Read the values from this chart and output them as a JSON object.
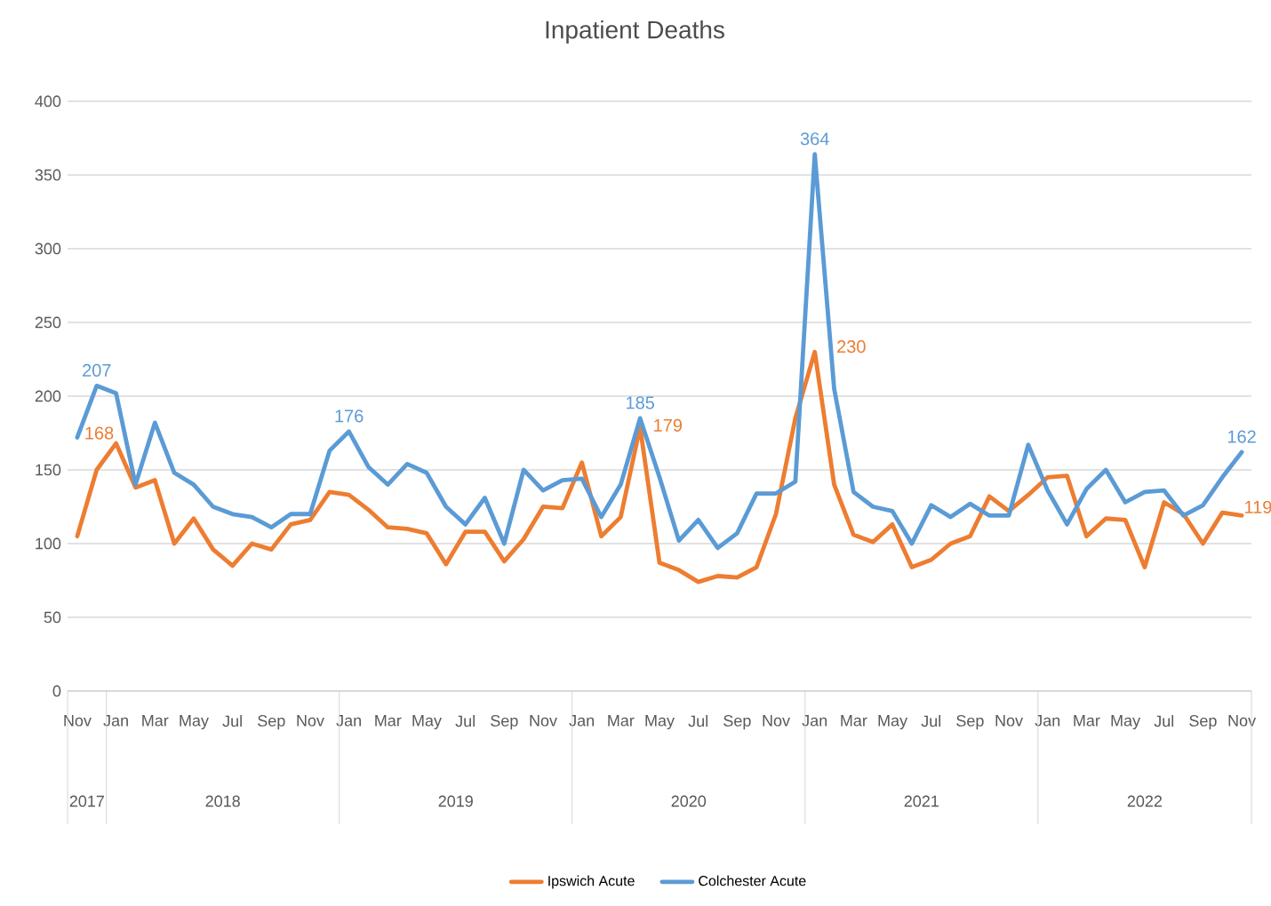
{
  "chart_data": {
    "type": "line",
    "title": "Inpatient Deaths",
    "categories": [
      "Nov",
      null,
      "Jan",
      null,
      "Mar",
      null,
      "May",
      null,
      "Jul",
      null,
      "Sep",
      null,
      "Nov",
      null,
      "Jan",
      null,
      "Mar",
      null,
      "May",
      null,
      "Jul",
      null,
      "Sep",
      null,
      "Nov",
      null,
      "Jan",
      null,
      "Mar",
      null,
      "May",
      null,
      "Jul",
      null,
      "Sep",
      null,
      "Nov",
      null,
      "Jan",
      null,
      "Mar",
      null,
      "May",
      null,
      "Jul",
      null,
      "Sep",
      null,
      "Nov",
      null,
      "Jan",
      null,
      "Mar",
      null,
      "May",
      null,
      "Jul",
      null,
      "Sep",
      null,
      "Nov"
    ],
    "series": [
      {
        "name": "Ipswich Acute",
        "color": "#ed7d31",
        "values": [
          105,
          150,
          168,
          138,
          143,
          100,
          117,
          96,
          85,
          100,
          96,
          113,
          116,
          135,
          133,
          123,
          111,
          110,
          107,
          86,
          108,
          108,
          88,
          103,
          125,
          124,
          155,
          105,
          118,
          179,
          87,
          82,
          74,
          78,
          77,
          84,
          120,
          185,
          230,
          140,
          106,
          101,
          113,
          84,
          89,
          100,
          105,
          132,
          122,
          133,
          145,
          146,
          105,
          117,
          116,
          84,
          128,
          120,
          100,
          121,
          119
        ],
        "value_labels": [
          null,
          null,
          "168",
          null,
          null,
          null,
          null,
          null,
          null,
          null,
          null,
          null,
          null,
          null,
          null,
          null,
          null,
          null,
          null,
          null,
          null,
          null,
          null,
          null,
          null,
          null,
          null,
          null,
          null,
          "179",
          null,
          null,
          null,
          null,
          null,
          null,
          null,
          null,
          "230",
          null,
          null,
          null,
          null,
          null,
          null,
          null,
          null,
          null,
          null,
          null,
          null,
          null,
          null,
          null,
          null,
          null,
          null,
          null,
          null,
          null,
          "119"
        ]
      },
      {
        "name": "Colchester Acute",
        "color": "#5b9bd5",
        "values": [
          172,
          207,
          202,
          140,
          182,
          148,
          140,
          125,
          120,
          118,
          111,
          120,
          120,
          163,
          176,
          152,
          140,
          154,
          148,
          125,
          113,
          131,
          100,
          150,
          136,
          143,
          144,
          118,
          140,
          185,
          145,
          102,
          116,
          97,
          107,
          134,
          134,
          142,
          364,
          205,
          135,
          125,
          122,
          100,
          126,
          118,
          127,
          119,
          119,
          167,
          136,
          113,
          137,
          150,
          128,
          135,
          136,
          119,
          126,
          145,
          162
        ],
        "value_labels": [
          null,
          "207",
          null,
          null,
          null,
          null,
          null,
          null,
          null,
          null,
          null,
          null,
          null,
          null,
          "176",
          null,
          null,
          null,
          null,
          null,
          null,
          null,
          null,
          null,
          null,
          null,
          null,
          null,
          null,
          "185",
          null,
          null,
          null,
          null,
          null,
          null,
          null,
          null,
          "364",
          null,
          null,
          null,
          null,
          null,
          null,
          null,
          null,
          null,
          null,
          null,
          null,
          null,
          null,
          null,
          null,
          null,
          null,
          null,
          null,
          null,
          "162"
        ]
      }
    ],
    "annotations": [
      "2017",
      "2018",
      "2019",
      "2020",
      "2021",
      "2022"
    ],
    "ylim": [
      0,
      400
    ],
    "yticks": [
      0,
      50,
      100,
      150,
      200,
      250,
      300,
      350,
      400
    ],
    "grid": "y",
    "legend": "bottom",
    "marker": "none",
    "line_style": "solid"
  }
}
